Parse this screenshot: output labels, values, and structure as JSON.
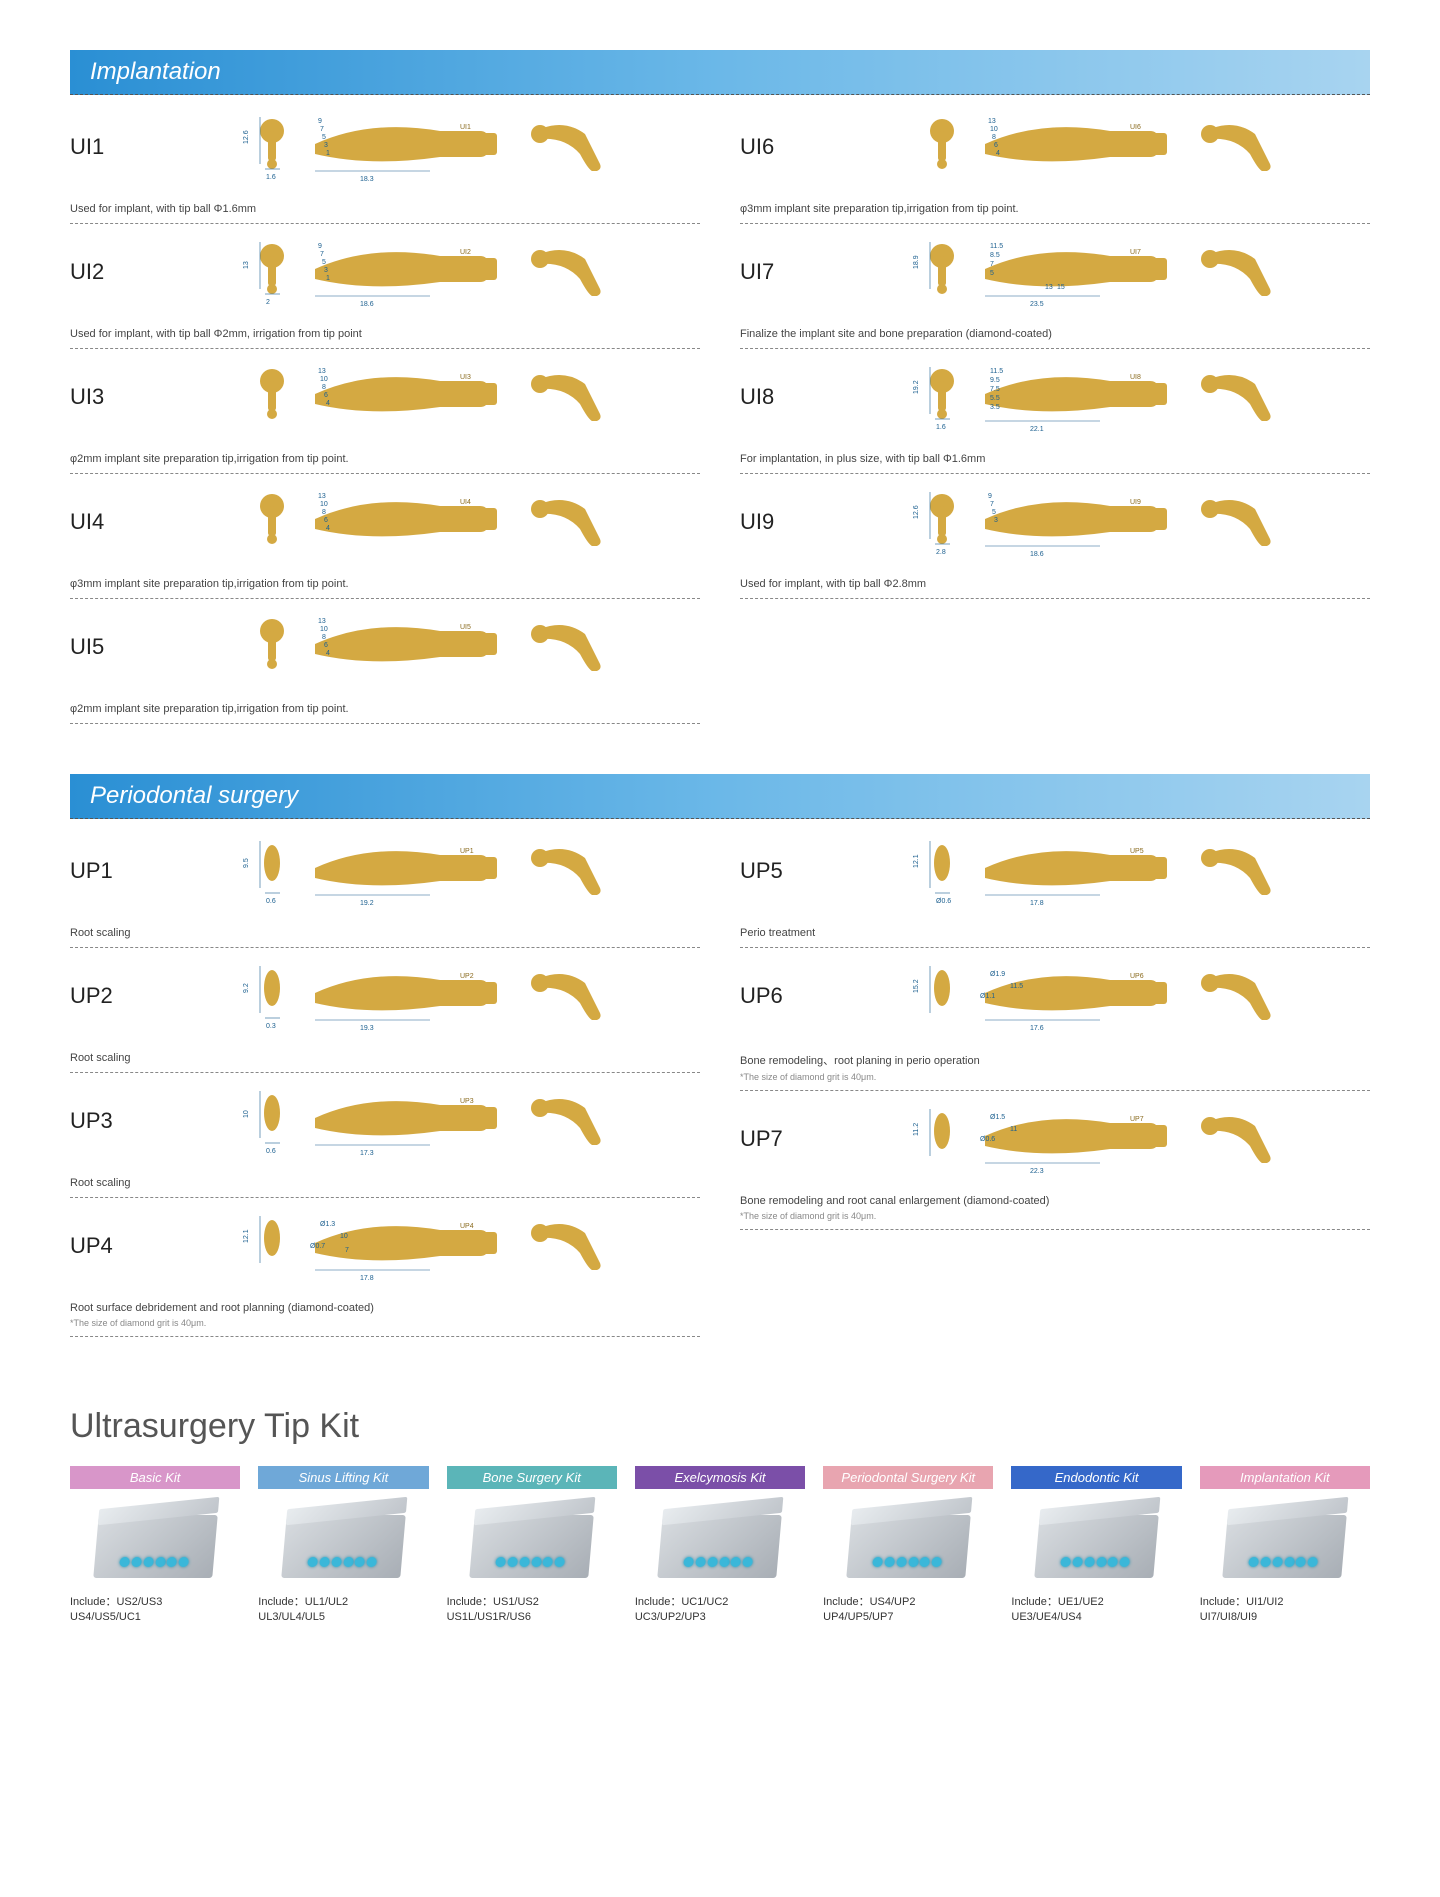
{
  "sections": {
    "implantation": {
      "title": "Implantation"
    },
    "periodontal": {
      "title": "Periodontal surgery"
    }
  },
  "implantation_products": {
    "left": [
      {
        "code": "UI1",
        "desc": "Used for implant, with tip ball Φ1.6mm",
        "dims": {
          "shaft": "18.3",
          "head": "12.6",
          "ball": "1.6",
          "steps": [
            "9",
            "7",
            "5",
            "3",
            "1"
          ]
        }
      },
      {
        "code": "UI2",
        "desc": "Used for implant, with tip ball Φ2mm, irrigation from tip point",
        "dims": {
          "shaft": "18.6",
          "head": "13",
          "ball": "2",
          "steps": [
            "9",
            "7",
            "5",
            "3",
            "1"
          ]
        }
      },
      {
        "code": "UI3",
        "desc": "φ2mm implant site preparation tip,irrigation from tip point.",
        "dims": {
          "steps": [
            "13",
            "10",
            "8",
            "6",
            "4"
          ]
        }
      },
      {
        "code": "UI4",
        "desc": "φ3mm implant site preparation tip,irrigation from tip point.",
        "dims": {
          "steps": [
            "13",
            "10",
            "8",
            "6",
            "4"
          ]
        }
      },
      {
        "code": "UI5",
        "desc": "φ2mm implant site preparation tip,irrigation from tip point.",
        "dims": {
          "steps": [
            "13",
            "10",
            "8",
            "6",
            "4"
          ]
        }
      }
    ],
    "right": [
      {
        "code": "UI6",
        "desc": "φ3mm implant site preparation tip,irrigation from tip point.",
        "dims": {
          "steps": [
            "13",
            "10",
            "8",
            "6",
            "4"
          ]
        }
      },
      {
        "code": "UI7",
        "desc": "Finalize the implant site and bone preparation (diamond-coated)",
        "dims": {
          "shaft": "23.5",
          "head": "18.9",
          "angles": [
            "11.5",
            "8.5",
            "7",
            "5"
          ],
          "side": [
            "13",
            "15"
          ]
        }
      },
      {
        "code": "UI8",
        "desc": "For implantation, in plus size, with tip ball Φ1.6mm",
        "dims": {
          "shaft": "22.1",
          "head": "19.2",
          "ball": "1.6",
          "angles": [
            "11.5",
            "9.5",
            "7.5",
            "5.5",
            "3.5"
          ]
        }
      },
      {
        "code": "UI9",
        "desc": "Used for implant, with tip ball Φ2.8mm",
        "dims": {
          "shaft": "18.6",
          "head": "12.6",
          "ball": "2.8",
          "steps": [
            "9",
            "7",
            "5",
            "3"
          ]
        }
      }
    ]
  },
  "periodontal_products": {
    "left": [
      {
        "code": "UP1",
        "desc": "Root scaling",
        "dims": {
          "shaft": "19.2",
          "head": "9.5",
          "tip": "0.6"
        }
      },
      {
        "code": "UP2",
        "desc": "Root scaling",
        "dims": {
          "shaft": "19.3",
          "head": "9.2",
          "tip": "0.3"
        }
      },
      {
        "code": "UP3",
        "desc": "Root scaling",
        "dims": {
          "shaft": "17.3",
          "head": "10",
          "tip": "0.6"
        }
      },
      {
        "code": "UP4",
        "desc": "Root surface debridement and root planning (diamond-coated)",
        "note": "*The size of diamond grit is 40μm.",
        "dims": {
          "shaft": "17.8",
          "head": "12.1",
          "d1": "Ø1.3",
          "d2": "Ø0.7",
          "mid": "10",
          "mid2": "7"
        }
      }
    ],
    "right": [
      {
        "code": "UP5",
        "desc": "Perio treatment",
        "dims": {
          "shaft": "17.8",
          "head": "12.1",
          "tip": "Ø0.6"
        }
      },
      {
        "code": "UP6",
        "desc": "Bone remodeling、root planing in perio operation",
        "note": "*The size of diamond grit is 40μm.",
        "dims": {
          "shaft": "17.6",
          "head": "15.2",
          "d1": "Ø1.9",
          "d2": "Ø1.1",
          "mid": "11.5"
        }
      },
      {
        "code": "UP7",
        "desc": "Bone remodeling and root canal enlargement (diamond-coated)",
        "note": "*The size of diamond grit is 40μm.",
        "dims": {
          "shaft": "22.3",
          "head": "11.2",
          "d1": "Ø1.5",
          "d2": "Ø0.6",
          "mid": "11"
        }
      }
    ]
  },
  "kit_section": {
    "heading_a": "Ultrasurgery",
    "heading_b": "Tip Kit",
    "include_label": "Include：",
    "kits": [
      {
        "name": "Basic Kit",
        "color": "#d896c9",
        "line1": "US2/US3",
        "line2": "US4/US5/UC1"
      },
      {
        "name": "Sinus Lifting Kit",
        "color": "#6fa8d8",
        "line1": "UL1/UL2",
        "line2": "UL3/UL4/UL5"
      },
      {
        "name": "Bone Surgery Kit",
        "color": "#5bb5b8",
        "line1": "US1/US2",
        "line2": "US1L/US1R/US6"
      },
      {
        "name": "Exelcymosis Kit",
        "color": "#7b4fa8",
        "line1": "UC1/UC2",
        "line2": "UC3/UP2/UP3"
      },
      {
        "name": "Periodontal Surgery Kit",
        "color": "#e8a5b0",
        "line1": "US4/UP2",
        "line2": "UP4/UP5/UP7"
      },
      {
        "name": "Endodontic Kit",
        "color": "#3568c9",
        "line1": "UE1/UE2",
        "line2": "UE3/UE4/US4"
      },
      {
        "name": "Implantation Kit",
        "color": "#e59abb",
        "line1": "UI1/UI2",
        "line2": "UI7/UI8/UI9"
      }
    ]
  },
  "colors": {
    "gold": "#d4a942",
    "gold_dark": "#b8902a",
    "dim_blue": "#1b5f8f",
    "header_grad_from": "#2a8fd4",
    "header_grad_to": "#a8d4f0"
  }
}
